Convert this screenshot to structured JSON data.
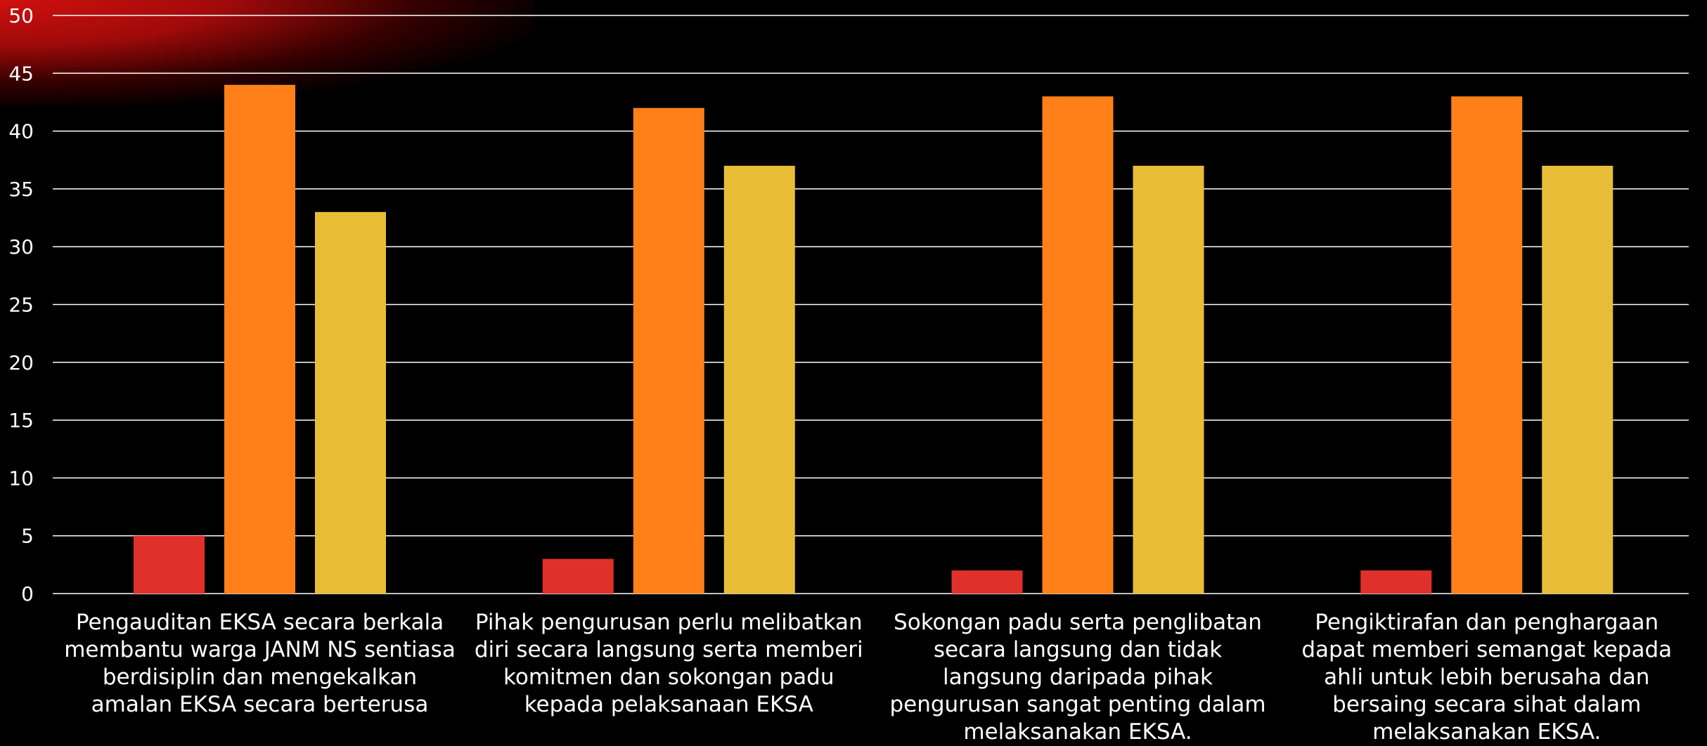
{
  "colors": {
    "background": "#000000",
    "grid": "#ffffff",
    "text": "#ffffff"
  },
  "chart_data": {
    "type": "bar",
    "title": "",
    "xlabel": "",
    "ylabel": "",
    "ylim": [
      0,
      50
    ],
    "yticks": [
      "0",
      "5",
      "10",
      "15",
      "20",
      "25",
      "30",
      "35",
      "40",
      "45",
      "50"
    ],
    "grid": true,
    "legend": "none",
    "categories": [
      "Pengauditan EKSA secara berkala membantu warga JANM NS sentiasa berdisiplin dan mengekalkan amalan EKSA secara berterusa",
      "Pihak pengurusan perlu melibatkan diri secara langsung serta memberi komitmen dan sokongan padu kepada pelaksanaan EKSA",
      "Sokongan padu serta penglibatan secara langsung dan tidak langsung daripada pihak pengurusan sangat penting dalam melaksanakan EKSA.",
      "Pengiktirafan dan penghargaan dapat memberi semangat kepada ahli untuk lebih berusaha dan bersaing secara sihat dalam melaksanakan EKSA."
    ],
    "series": [
      {
        "color": "#e0302a",
        "values": [
          5,
          3,
          2,
          2
        ]
      },
      {
        "color": "#ff8019",
        "values": [
          44,
          42,
          43,
          43
        ]
      },
      {
        "color": "#e8bd36",
        "values": [
          33,
          37,
          37,
          37
        ]
      }
    ]
  }
}
